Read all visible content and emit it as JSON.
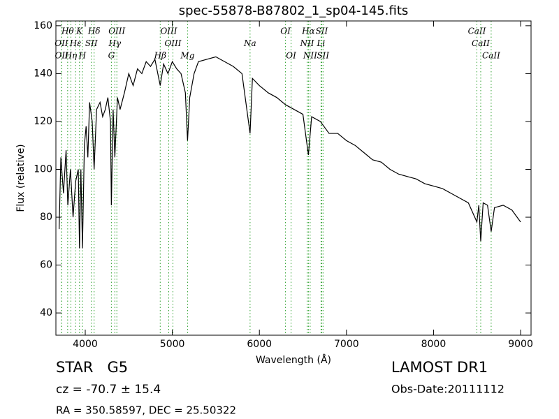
{
  "chart_data": {
    "type": "line",
    "title": "spec-55878-B87802_1_sp04-145.fits",
    "xlabel": "Wavelength (Å)",
    "ylabel": "Flux (relative)",
    "xlim": [
      3663,
      9120
    ],
    "ylim": [
      30.7,
      162
    ],
    "xticks": [
      4000,
      5000,
      6000,
      7000,
      8000,
      9000
    ],
    "yticks": [
      40,
      60,
      80,
      100,
      120,
      140,
      160
    ],
    "x": [
      3700,
      3720,
      3750,
      3780,
      3800,
      3830,
      3860,
      3890,
      3920,
      3934,
      3950,
      3968,
      3990,
      4010,
      4030,
      4050,
      4080,
      4102,
      4130,
      4170,
      4200,
      4230,
      4260,
      4290,
      4300,
      4320,
      4340,
      4370,
      4400,
      4450,
      4500,
      4550,
      4600,
      4650,
      4700,
      4750,
      4800,
      4861,
      4900,
      4950,
      5000,
      5050,
      5100,
      5150,
      5175,
      5200,
      5250,
      5300,
      5400,
      5500,
      5600,
      5700,
      5800,
      5893,
      5920,
      6000,
      6100,
      6200,
      6300,
      6400,
      6500,
      6563,
      6600,
      6700,
      6800,
      6900,
      7000,
      7100,
      7200,
      7300,
      7400,
      7500,
      7600,
      7700,
      7800,
      7900,
      8000,
      8100,
      8200,
      8300,
      8400,
      8498,
      8520,
      8542,
      8570,
      8620,
      8662,
      8700,
      8800,
      8900,
      9000
    ],
    "series": [
      {
        "name": "flux",
        "color": "#000000",
        "values": [
          75,
          105,
          90,
          108,
          85,
          100,
          80,
          95,
          100,
          67,
          100,
          67,
          110,
          118,
          105,
          128,
          120,
          100,
          125,
          128,
          122,
          125,
          130,
          120,
          85,
          125,
          105,
          130,
          125,
          132,
          140,
          135,
          142,
          140,
          145,
          143,
          146,
          135,
          144,
          140,
          145,
          142,
          140,
          132,
          112,
          130,
          140,
          145,
          146,
          147,
          145,
          143,
          140,
          115,
          138,
          135,
          132,
          130,
          127,
          125,
          123,
          106,
          122,
          120,
          115,
          115,
          112,
          110,
          107,
          104,
          103,
          100,
          98,
          97,
          96,
          94,
          93,
          92,
          90,
          88,
          86,
          78,
          85,
          70,
          86,
          85,
          74,
          84,
          85,
          83,
          78
        ]
      }
    ],
    "line_color": "#2ca02c",
    "spectral_lines": [
      [
        {
          "label": "Hθ",
          "x": 3798
        },
        {
          "label": "K",
          "x": 3934
        },
        {
          "label": "Hδ",
          "x": 4102
        },
        {
          "label": "OIII",
          "x": 4363
        },
        {
          "label": "OIII",
          "x": 4959
        },
        {
          "label": "OI",
          "x": 6300
        },
        {
          "label": "Hα",
          "x": 6563
        },
        {
          "label": "SII",
          "x": 6716
        },
        {
          "label": "CaII",
          "x": 8498
        }
      ],
      [
        {
          "label": "OII",
          "x": 3727
        },
        {
          "label": "Hε",
          "x": 3889
        },
        {
          "label": "SII",
          "x": 4070
        },
        {
          "label": "Hγ",
          "x": 4340
        },
        {
          "label": "OIII",
          "x": 5007
        },
        {
          "label": "Na",
          "x": 5893
        },
        {
          "label": "NII",
          "x": 6548
        },
        {
          "label": "Li",
          "x": 6708
        },
        {
          "label": "CaII",
          "x": 8542
        }
      ],
      [
        {
          "label": "OII",
          "x": 3729
        },
        {
          "label": "Hη",
          "x": 3835
        },
        {
          "label": "H",
          "x": 3968
        },
        {
          "label": "G",
          "x": 4300
        },
        {
          "label": "Hβ",
          "x": 4861
        },
        {
          "label": "Mg",
          "x": 5175
        },
        {
          "label": "OI",
          "x": 6364
        },
        {
          "label": "NII",
          "x": 6583
        },
        {
          "label": "SII",
          "x": 6731
        },
        {
          "label": "CaII",
          "x": 8662
        }
      ]
    ],
    "object_class": "STAR   G5",
    "redshift": "cz = -70.7 ± 15.4",
    "coordinates": "RA = 350.58597, DEC = 25.50322",
    "survey": "LAMOST DR1",
    "obs_date": "Obs-Date:20111112"
  }
}
